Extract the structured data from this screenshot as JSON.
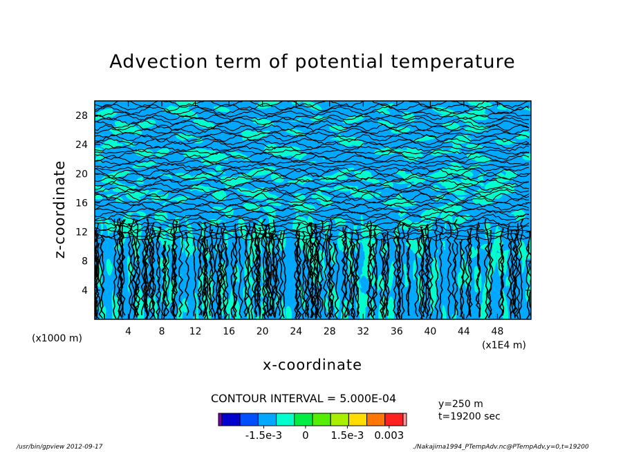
{
  "chart_data": {
    "type": "heatmap",
    "title": "Advection term of potential temperature",
    "xlabel": "x-coordinate",
    "ylabel": "z-coordinate",
    "x_unit_label": "(x1000 m)",
    "x_scale_label": "(x1E4 m)",
    "xlim": [
      0,
      52
    ],
    "ylim": [
      0,
      30
    ],
    "x_ticks": [
      4,
      8,
      12,
      16,
      20,
      24,
      28,
      32,
      36,
      40,
      44,
      48
    ],
    "x_tick_labels": [
      "4",
      "8",
      "12",
      "16",
      "20",
      "24",
      "28",
      "32",
      "36",
      "40",
      "44",
      "48"
    ],
    "y_ticks": [
      4,
      8,
      12,
      16,
      20,
      24,
      28
    ],
    "y_tick_labels": [
      "4",
      "8",
      "12",
      "16",
      "20",
      "24",
      "28"
    ],
    "contour_interval_text": "CONTOUR INTERVAL = 5.000E-04",
    "colorbar": {
      "colors": [
        "#7700aa",
        "#0000cc",
        "#0050ff",
        "#00a8ff",
        "#00ffcc",
        "#00ee44",
        "#55ee00",
        "#aaee00",
        "#ffdd00",
        "#ff7700",
        "#ff2020",
        "#ff9999"
      ],
      "labels": [
        "-1.5e-3",
        "0",
        "1.5e-3",
        "0.003"
      ],
      "label_values": [
        -0.0015,
        0,
        0.0015,
        0.003
      ],
      "range": [
        -0.003,
        0.0035
      ]
    },
    "annotations": [
      "y=250 m",
      "t=19200 sec"
    ]
  },
  "footer": {
    "left": "/usr/bin/gpview   2012-09-17",
    "right": "./Nakajima1994_PTempAdv.nc@PTempAdv,y=0,t=19200"
  }
}
